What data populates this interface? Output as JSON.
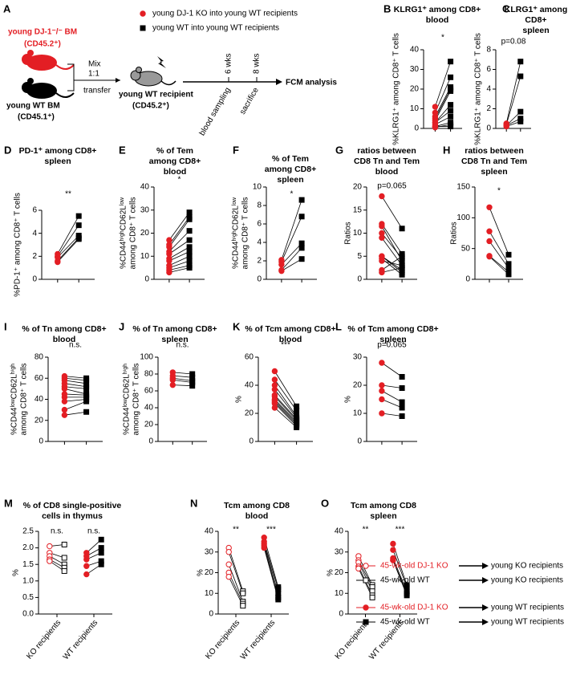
{
  "diagram": {
    "panel": "A",
    "legend": [
      {
        "label": "young DJ-1 KO into young WT recipients",
        "color": "#e31e24",
        "marker": "circle"
      },
      {
        "label": "young WT into young WT recipients",
        "color": "#000000",
        "marker": "square"
      }
    ],
    "ko_bm": [
      "young DJ-1⁻/⁻ BM",
      "(CD45.2⁺)"
    ],
    "wt_bm": [
      "young WT BM",
      "(CD45.1⁺)"
    ],
    "mix": [
      "Mix",
      "1:1"
    ],
    "transfer": "transfer",
    "recipient": [
      "young WT recipient",
      "(CD45.2⁺)"
    ],
    "timepoints": [
      "6 wks",
      "8 wks"
    ],
    "events": [
      "blood sampling",
      "sacrifice"
    ],
    "endpoint": "FCM analysis"
  },
  "chart_data": [
    {
      "panel": "B",
      "type": "paired",
      "title": [
        "KLRG1⁺ among CD8+",
        "blood"
      ],
      "ylabel": [
        "%KLRG1⁺ among CD8⁺ T cells"
      ],
      "ylim": [
        0,
        40
      ],
      "yticks": [
        0,
        10,
        20,
        30,
        40
      ],
      "significance": "*",
      "series": [
        {
          "color": "#e31e24",
          "marker": "circle",
          "filled": true,
          "values": [
            11,
            8,
            6,
            5,
            4,
            3,
            3,
            2,
            1,
            0.5,
            1
          ]
        },
        {
          "color": "#000000",
          "marker": "square",
          "filled": true,
          "values": [
            34,
            26,
            21,
            20,
            19,
            12,
            9,
            6,
            3,
            2,
            1
          ]
        }
      ]
    },
    {
      "panel": "C",
      "type": "paired",
      "title": [
        "KLRG1⁺ among",
        "CD8+",
        "spleen"
      ],
      "ylabel": [
        "%KLRG1⁺ among CD8⁺ T cells"
      ],
      "ylim": [
        0,
        8
      ],
      "yticks": [
        0,
        2,
        4,
        6,
        8
      ],
      "significance": "p=0.08",
      "series": [
        {
          "color": "#e31e24",
          "marker": "circle",
          "filled": true,
          "values": [
            0.5,
            0.4,
            0.3,
            0.3,
            0.2
          ]
        },
        {
          "color": "#000000",
          "marker": "square",
          "filled": true,
          "values": [
            6.8,
            5.3,
            1.7,
            1.0,
            0.7
          ]
        }
      ]
    },
    {
      "panel": "D",
      "type": "paired",
      "title": [
        "PD-1⁺ among CD8+",
        "spleen"
      ],
      "ylabel": [
        "%PD-1⁺ among CD8⁺ T cells"
      ],
      "ylim": [
        0,
        6
      ],
      "yticks": [
        0,
        2,
        4,
        6
      ],
      "significance": "**",
      "series": [
        {
          "color": "#e31e24",
          "marker": "circle",
          "filled": true,
          "values": [
            2.2,
            2.0,
            1.9,
            1.6,
            1.5
          ]
        },
        {
          "color": "#000000",
          "marker": "square",
          "filled": true,
          "values": [
            5.5,
            4.7,
            3.8,
            3.6,
            3.5
          ]
        }
      ]
    },
    {
      "panel": "E",
      "type": "paired",
      "title": [
        "% of Tem",
        "among CD8+",
        "blood"
      ],
      "ylabel": [
        "%CD44ʰⁱᵍʰCD62Lˡᵒʷ",
        "among CD8⁺ T cells"
      ],
      "ylim": [
        0,
        40
      ],
      "yticks": [
        0,
        10,
        20,
        30,
        40
      ],
      "significance": "*",
      "series": [
        {
          "color": "#e31e24",
          "marker": "circle",
          "filled": true,
          "values": [
            17,
            15,
            14,
            12,
            11,
            9,
            8,
            6,
            5,
            4,
            3
          ]
        },
        {
          "color": "#000000",
          "marker": "square",
          "filled": true,
          "values": [
            29,
            27,
            26,
            21,
            17,
            14,
            12,
            10,
            8,
            6,
            5
          ]
        }
      ]
    },
    {
      "panel": "F",
      "type": "paired",
      "title": [
        "% of Tem",
        "among CD8+",
        "spleen"
      ],
      "ylabel": [
        "%CD44ʰⁱᵍʰCD62Lˡᵒʷ",
        "among CD8⁺ T cells"
      ],
      "ylim": [
        0,
        10
      ],
      "yticks": [
        0,
        2,
        4,
        6,
        8,
        10
      ],
      "significance": "*",
      "series": [
        {
          "color": "#e31e24",
          "marker": "circle",
          "filled": true,
          "values": [
            2.1,
            1.9,
            1.6,
            1.0,
            0.9
          ]
        },
        {
          "color": "#000000",
          "marker": "square",
          "filled": true,
          "values": [
            8.6,
            6.8,
            3.9,
            3.4,
            2.2
          ]
        }
      ]
    },
    {
      "panel": "G",
      "type": "paired",
      "title": [
        "ratios between",
        "CD8 Tn and Tem",
        "blood"
      ],
      "ylabel": [
        "Ratios"
      ],
      "ylim": [
        0,
        20
      ],
      "yticks": [
        0,
        5,
        10,
        15,
        20
      ],
      "significance": "p=0.065",
      "series": [
        {
          "color": "#e31e24",
          "marker": "circle",
          "filled": true,
          "values": [
            18,
            12,
            11.5,
            10,
            9,
            5,
            5,
            4.5,
            2,
            1.5,
            4
          ]
        },
        {
          "color": "#000000",
          "marker": "square",
          "filled": true,
          "values": [
            11,
            5.5,
            4,
            4.5,
            3,
            2,
            1.5,
            1,
            5,
            2.5,
            3
          ]
        }
      ]
    },
    {
      "panel": "H",
      "type": "paired",
      "title": [
        "ratios between",
        "CD8 Tn and Tem",
        "spleen"
      ],
      "ylabel": [
        "Ratios"
      ],
      "ylim": [
        0,
        150
      ],
      "yticks": [
        0,
        50,
        100,
        150
      ],
      "significance": "*",
      "series": [
        {
          "color": "#e31e24",
          "marker": "circle",
          "filled": true,
          "values": [
            117,
            78,
            62,
            38,
            37
          ]
        },
        {
          "color": "#000000",
          "marker": "square",
          "filled": true,
          "values": [
            40,
            25,
            18,
            12,
            8
          ]
        }
      ]
    },
    {
      "panel": "I",
      "type": "paired",
      "title": [
        "% of Tn among CD8+",
        "blood"
      ],
      "ylabel": [
        "%CD44ˡᵒʷCD62Lʰⁱᵍʰ",
        "among CD8⁺ T cells"
      ],
      "ylim": [
        0,
        80
      ],
      "yticks": [
        0,
        20,
        40,
        60,
        80
      ],
      "significance": "n.s.",
      "series": [
        {
          "color": "#e31e24",
          "marker": "circle",
          "filled": true,
          "values": [
            62,
            60,
            58,
            55,
            52,
            50,
            45,
            42,
            38,
            30,
            25
          ]
        },
        {
          "color": "#000000",
          "marker": "square",
          "filled": true,
          "values": [
            60,
            58,
            55,
            52,
            50,
            45,
            44,
            42,
            40,
            38,
            28
          ]
        }
      ]
    },
    {
      "panel": "J",
      "type": "paired",
      "title": [
        "% of Tn among CD8+",
        "spleen"
      ],
      "ylabel": [
        "%CD44ˡᵒʷCD62Lʰⁱᵍʰ",
        "among CD8⁺ T cells"
      ],
      "ylim": [
        0,
        100
      ],
      "yticks": [
        0,
        20,
        40,
        60,
        80,
        100
      ],
      "significance": "n.s.",
      "series": [
        {
          "color": "#e31e24",
          "marker": "circle",
          "filled": true,
          "values": [
            82,
            78,
            75,
            73,
            67
          ]
        },
        {
          "color": "#000000",
          "marker": "square",
          "filled": true,
          "values": [
            80,
            76,
            72,
            70,
            66
          ]
        }
      ]
    },
    {
      "panel": "K",
      "type": "paired",
      "title": [
        "% of Tcm among CD8+",
        "blood"
      ],
      "ylabel": [
        "%"
      ],
      "ylim": [
        0,
        60
      ],
      "yticks": [
        0,
        20,
        40,
        60
      ],
      "significance": "***",
      "series": [
        {
          "color": "#e31e24",
          "marker": "circle",
          "filled": true,
          "values": [
            50,
            44,
            40,
            37,
            33,
            32,
            30,
            29,
            28,
            27,
            24
          ]
        },
        {
          "color": "#000000",
          "marker": "square",
          "filled": true,
          "values": [
            25,
            22,
            18,
            17,
            16,
            15,
            14,
            13,
            12,
            11,
            10
          ]
        }
      ]
    },
    {
      "panel": "L",
      "type": "paired",
      "title": [
        "% of Tcm among CD8+",
        "spleen"
      ],
      "ylabel": [
        "%"
      ],
      "ylim": [
        0,
        30
      ],
      "yticks": [
        0,
        10,
        20,
        30
      ],
      "significance": "p=0.065",
      "series": [
        {
          "color": "#e31e24",
          "marker": "circle",
          "filled": true,
          "values": [
            28,
            20,
            18,
            15,
            10
          ]
        },
        {
          "color": "#000000",
          "marker": "square",
          "filled": true,
          "values": [
            23,
            19,
            14,
            12,
            9
          ]
        }
      ]
    },
    {
      "panel": "M",
      "type": "grouped-paired",
      "title": [
        "% of CD8 single-positive",
        "cells in thymus"
      ],
      "ylabel": [
        "%"
      ],
      "ylim": [
        0,
        2.5
      ],
      "yticks": [
        {
          "value": 0,
          "label": "0.0"
        },
        0.5,
        {
          "value": 1,
          "label": "1.0"
        },
        1.5,
        {
          "value": 2,
          "label": "2.0"
        },
        2.5
      ],
      "groups": [
        {
          "category": "KO recipients",
          "significance": "n.s.",
          "series": [
            {
              "color": "#e31e24",
              "marker": "circle",
              "filled": false,
              "values": [
                2.05,
                1.85,
                1.75,
                1.65,
                1.6
              ]
            },
            {
              "color": "#000000",
              "marker": "square",
              "filled": false,
              "values": [
                2.1,
                1.7,
                1.5,
                1.4,
                1.3
              ]
            }
          ]
        },
        {
          "category": "WT recipients",
          "significance": "n.s.",
          "series": [
            {
              "color": "#e31e24",
              "marker": "circle",
              "filled": true,
              "values": [
                1.85,
                1.75,
                1.65,
                1.45,
                1.2
              ]
            },
            {
              "color": "#000000",
              "marker": "square",
              "filled": true,
              "values": [
                2.25,
                2.0,
                1.85,
                1.6,
                1.5
              ]
            }
          ]
        }
      ]
    },
    {
      "panel": "N",
      "type": "grouped-paired",
      "title": [
        "Tcm among CD8",
        "blood"
      ],
      "ylabel": [
        "%"
      ],
      "ylim": [
        0,
        40
      ],
      "yticks": [
        0,
        10,
        20,
        30,
        40
      ],
      "groups": [
        {
          "category": "KO recipients",
          "significance": "**",
          "series": [
            {
              "color": "#e31e24",
              "marker": "circle",
              "filled": false,
              "values": [
                32,
                30,
                24,
                20,
                18
              ]
            },
            {
              "color": "#000000",
              "marker": "square",
              "filled": false,
              "values": [
                11,
                10,
                6,
                5,
                4
              ]
            }
          ]
        },
        {
          "category": "WT recipients",
          "significance": "***",
          "series": [
            {
              "color": "#e31e24",
              "marker": "circle",
              "filled": true,
              "values": [
                37,
                35,
                34,
                33,
                32
              ]
            },
            {
              "color": "#000000",
              "marker": "square",
              "filled": true,
              "values": [
                13,
                12,
                10,
                8,
                7
              ]
            }
          ]
        }
      ]
    },
    {
      "panel": "O",
      "type": "grouped-paired",
      "title": [
        "Tcm among CD8",
        "spleen"
      ],
      "ylabel": [
        "%"
      ],
      "ylim": [
        0,
        40
      ],
      "yticks": [
        0,
        10,
        20,
        30,
        40
      ],
      "groups": [
        {
          "category": "KO recipients",
          "significance": "**",
          "series": [
            {
              "color": "#e31e24",
              "marker": "circle",
              "filled": false,
              "values": [
                28,
                26,
                25,
                23,
                22
              ]
            },
            {
              "color": "#000000",
              "marker": "square",
              "filled": false,
              "values": [
                14,
                13,
                11,
                9,
                8
              ]
            }
          ]
        },
        {
          "category": "WT recipients",
          "significance": "***",
          "series": [
            {
              "color": "#e31e24",
              "marker": "circle",
              "filled": true,
              "values": [
                34,
                31,
                27,
                26,
                26
              ]
            },
            {
              "color": "#000000",
              "marker": "square",
              "filled": true,
              "values": [
                14,
                13,
                11,
                10,
                9
              ]
            }
          ]
        }
      ]
    }
  ],
  "legend": {
    "entries": [
      {
        "label": "45-wk-old DJ-1 KO",
        "color": "#e31e24",
        "marker": "circle",
        "filled": false,
        "recipients": "young KO recipients"
      },
      {
        "label": "45-wk-old WT",
        "color": "#000000",
        "marker": "square",
        "filled": false,
        "recipients": "young KO recipients"
      },
      {
        "label": "45-wk-old DJ-1 KO",
        "color": "#e31e24",
        "marker": "circle",
        "filled": true,
        "recipients": "young WT recipients"
      },
      {
        "label": "45-wk-old WT",
        "color": "#000000",
        "marker": "square",
        "filled": true,
        "recipients": "young WT recipients"
      }
    ]
  }
}
